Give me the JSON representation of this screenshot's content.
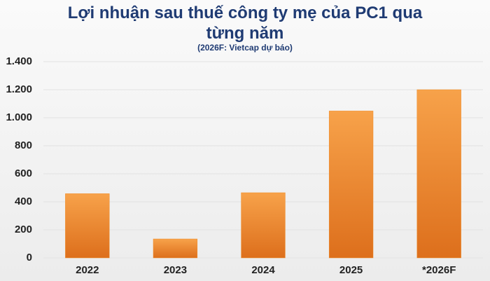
{
  "chart_data": {
    "type": "bar",
    "title": "Lợi nhuận sau thuế công ty mẹ của PC1 qua từng năm",
    "subtitle": "(2026F: Vietcap dự báo)",
    "categories": [
      "2022",
      "2023",
      "2024",
      "2025",
      "*2026F"
    ],
    "values": [
      458,
      135,
      465,
      1048,
      1200
    ],
    "color": "#f08a24",
    "ylim": [
      0,
      1400
    ],
    "yticks": [
      0,
      200,
      400,
      600,
      800,
      {
        "value": 1000,
        "label": "1.000"
      },
      {
        "value": 1200,
        "label": "1.200"
      },
      {
        "value": 1400,
        "label": "1.400"
      }
    ],
    "grid": true
  }
}
